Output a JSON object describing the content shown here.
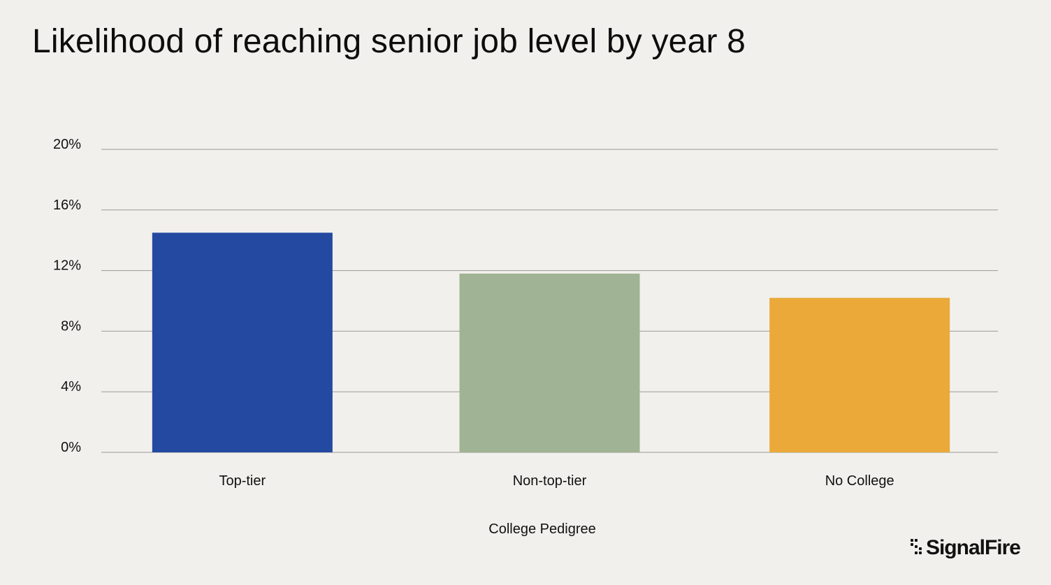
{
  "title": "Likelihood of reaching senior job level by year 8",
  "logo": {
    "text": "SignalFire",
    "icon": "signalfire-logo-icon"
  },
  "chart_data": {
    "type": "bar",
    "title": "Likelihood of reaching senior job level by year 8",
    "xlabel": "College Pedigree",
    "ylabel": "",
    "categories": [
      "Top-tier",
      "Non-top-tier",
      "No College"
    ],
    "values": [
      14.5,
      11.8,
      10.2
    ],
    "colors": [
      "#2349a0",
      "#a0b394",
      "#eaa938"
    ],
    "ylim": [
      0,
      20
    ],
    "yticks": [
      0,
      4,
      8,
      12,
      16,
      20
    ],
    "ytick_labels": [
      "0%",
      "4%",
      "8%",
      "12%",
      "16%",
      "20%"
    ],
    "grid": true,
    "legend": "none"
  }
}
